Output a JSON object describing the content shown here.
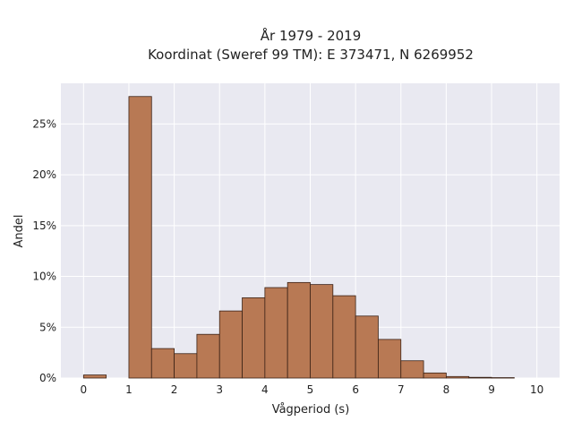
{
  "chart_data": {
    "type": "bar",
    "title_line1": "År 1979 - 2019",
    "title_line2": "Koordinat (Sweref 99 TM): E 373471, N 6269952",
    "xlabel": "Vågperiod (s)",
    "ylabel": "Andel",
    "bin_width": 0.5,
    "xlim": [
      -0.5,
      10.5
    ],
    "ylim": [
      0,
      0.29
    ],
    "x_ticks": [
      0,
      1,
      2,
      3,
      4,
      5,
      6,
      7,
      8,
      9,
      10
    ],
    "x_tick_labels": [
      "0",
      "1",
      "2",
      "3",
      "4",
      "5",
      "6",
      "7",
      "8",
      "9",
      "10"
    ],
    "y_ticks": [
      0,
      0.05,
      0.1,
      0.15,
      0.2,
      0.25
    ],
    "y_tick_labels": [
      "0%",
      "5%",
      "10%",
      "15%",
      "20%",
      "25%"
    ],
    "bar_color": "#b87954",
    "plot_bg": "#e9e9f1",
    "grid": true,
    "bins": [
      {
        "start": 0.0,
        "value": 0.003
      },
      {
        "start": 0.5,
        "value": 0.0
      },
      {
        "start": 1.0,
        "value": 0.277
      },
      {
        "start": 1.5,
        "value": 0.029
      },
      {
        "start": 2.0,
        "value": 0.024
      },
      {
        "start": 2.5,
        "value": 0.043
      },
      {
        "start": 3.0,
        "value": 0.066
      },
      {
        "start": 3.5,
        "value": 0.079
      },
      {
        "start": 4.0,
        "value": 0.089
      },
      {
        "start": 4.5,
        "value": 0.094
      },
      {
        "start": 5.0,
        "value": 0.092
      },
      {
        "start": 5.5,
        "value": 0.081
      },
      {
        "start": 6.0,
        "value": 0.061
      },
      {
        "start": 6.5,
        "value": 0.038
      },
      {
        "start": 7.0,
        "value": 0.017
      },
      {
        "start": 7.5,
        "value": 0.005
      },
      {
        "start": 8.0,
        "value": 0.0015
      },
      {
        "start": 8.5,
        "value": 0.0007
      },
      {
        "start": 9.0,
        "value": 0.0004
      },
      {
        "start": 9.5,
        "value": 0.0
      }
    ]
  }
}
